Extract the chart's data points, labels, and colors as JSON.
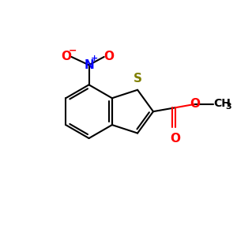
{
  "background_color": "#ffffff",
  "bond_color": "#000000",
  "sulfur_color": "#808000",
  "oxygen_color": "#ff0000",
  "nitrogen_color": "#0000ff",
  "carbon_color": "#000000",
  "bond_width": 1.5,
  "figsize": [
    3.0,
    3.0
  ],
  "dpi": 100,
  "xlim": [
    0,
    10
  ],
  "ylim": [
    0,
    10
  ]
}
